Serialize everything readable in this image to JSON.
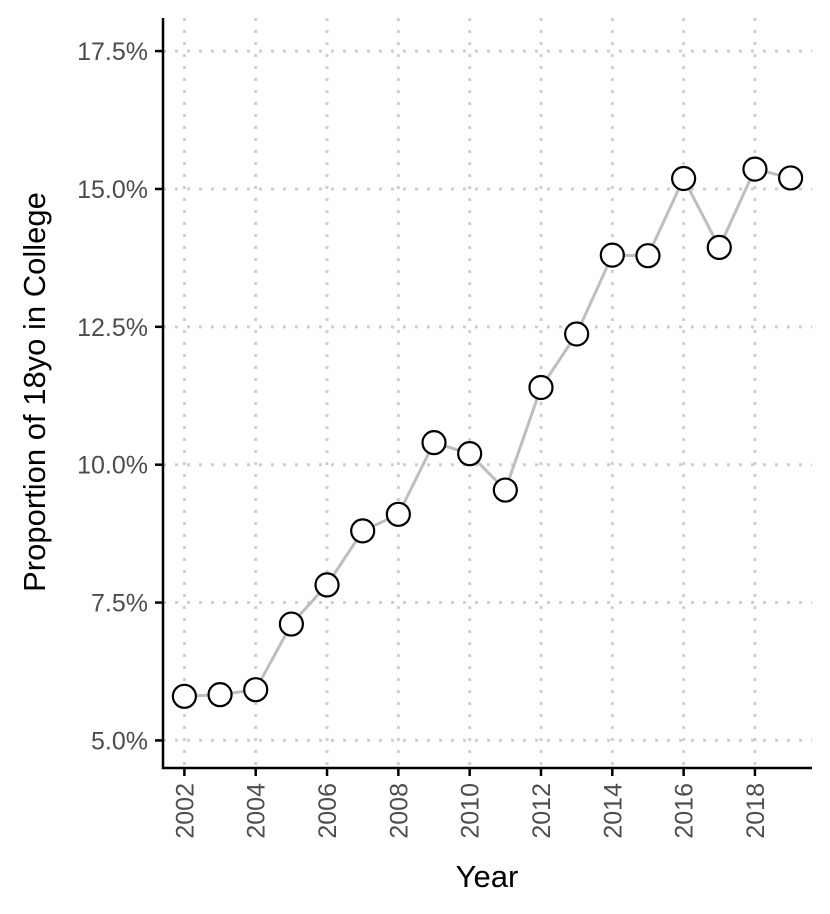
{
  "chart_data": {
    "type": "line",
    "title": "",
    "xlabel": "Year",
    "ylabel": "Proportion of 18yo in College",
    "x": [
      2002,
      2003,
      2004,
      2005,
      2006,
      2007,
      2008,
      2009,
      2010,
      2011,
      2012,
      2013,
      2014,
      2015,
      2016,
      2017,
      2018,
      2019
    ],
    "series": [
      {
        "values": [
          5.8,
          5.83,
          5.92,
          7.11,
          7.82,
          8.8,
          9.1,
          10.4,
          10.2,
          9.54,
          11.4,
          12.37,
          13.8,
          13.79,
          15.19,
          13.94,
          15.36,
          15.2
        ]
      }
    ],
    "xlim": [
      2001.4,
      2019.6
    ],
    "ylim": [
      4.5,
      18.1
    ],
    "x_ticks": [
      2002,
      2004,
      2006,
      2008,
      2010,
      2012,
      2014,
      2016,
      2018
    ],
    "x_tick_labels": [
      "2002",
      "2004",
      "2006",
      "2008",
      "2010",
      "2012",
      "2014",
      "2016",
      "2018"
    ],
    "y_ticks": [
      5.0,
      7.5,
      10.0,
      12.5,
      15.0,
      17.5
    ],
    "y_tick_labels": [
      "5.0%",
      "7.5%",
      "10.0%",
      "12.5%",
      "15.0%",
      "17.5%"
    ],
    "grid": "dotted",
    "legend": "none",
    "colors": {
      "line": "#bebebe",
      "marker_stroke": "#000000",
      "marker_fill": "#ffffff",
      "grid": "#cfcfcf",
      "axis": "#000000",
      "tick_text": "#4d4d4d"
    }
  }
}
